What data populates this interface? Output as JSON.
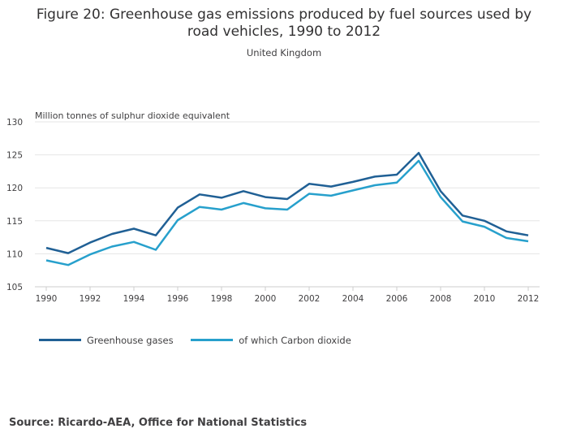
{
  "header": {
    "title_line1": "Figure 20: Greenhouse gas emissions produced by fuel sources used by",
    "title_line2": "road vehicles, 1990 to 2012",
    "subtitle": "United Kingdom"
  },
  "chart_data": {
    "type": "line",
    "title": "Figure 20: Greenhouse gas emissions produced by fuel sources used by road vehicles, 1990 to 2012",
    "subtitle": "United Kingdom",
    "ylabel": "Million tonnes of sulphur dioxide equivalent",
    "xlabel": "",
    "ylim": [
      105,
      130
    ],
    "xlim": [
      1990,
      2012
    ],
    "yticks": [
      105,
      110,
      115,
      120,
      125,
      130
    ],
    "xticks": [
      1990,
      1992,
      1994,
      1996,
      1998,
      2000,
      2002,
      2004,
      2006,
      2008,
      2010,
      2012
    ],
    "grid": true,
    "legend_position": "bottom-left",
    "x": [
      1990,
      1991,
      1992,
      1993,
      1994,
      1995,
      1996,
      1997,
      1998,
      1999,
      2000,
      2001,
      2002,
      2003,
      2004,
      2005,
      2006,
      2007,
      2008,
      2009,
      2010,
      2011,
      2012
    ],
    "series": [
      {
        "name": "Greenhouse gases",
        "color": "#206095",
        "values": [
          110.9,
          110.1,
          111.7,
          113.0,
          113.8,
          112.8,
          117.0,
          119.0,
          118.5,
          119.5,
          118.6,
          118.3,
          120.6,
          120.2,
          120.9,
          121.7,
          122.0,
          125.3,
          119.5,
          115.8,
          115.0,
          113.4,
          112.8
        ]
      },
      {
        "name": "of which Carbon dioxide",
        "color": "#27a0cc",
        "values": [
          109.0,
          108.3,
          109.9,
          111.1,
          111.8,
          110.6,
          115.1,
          117.1,
          116.7,
          117.7,
          116.9,
          116.7,
          119.1,
          118.8,
          119.6,
          120.4,
          120.8,
          124.1,
          118.6,
          114.9,
          114.1,
          112.4,
          111.9
        ]
      }
    ]
  },
  "footer": {
    "source": "Source: Ricardo-AEA, Office for National Statistics"
  }
}
